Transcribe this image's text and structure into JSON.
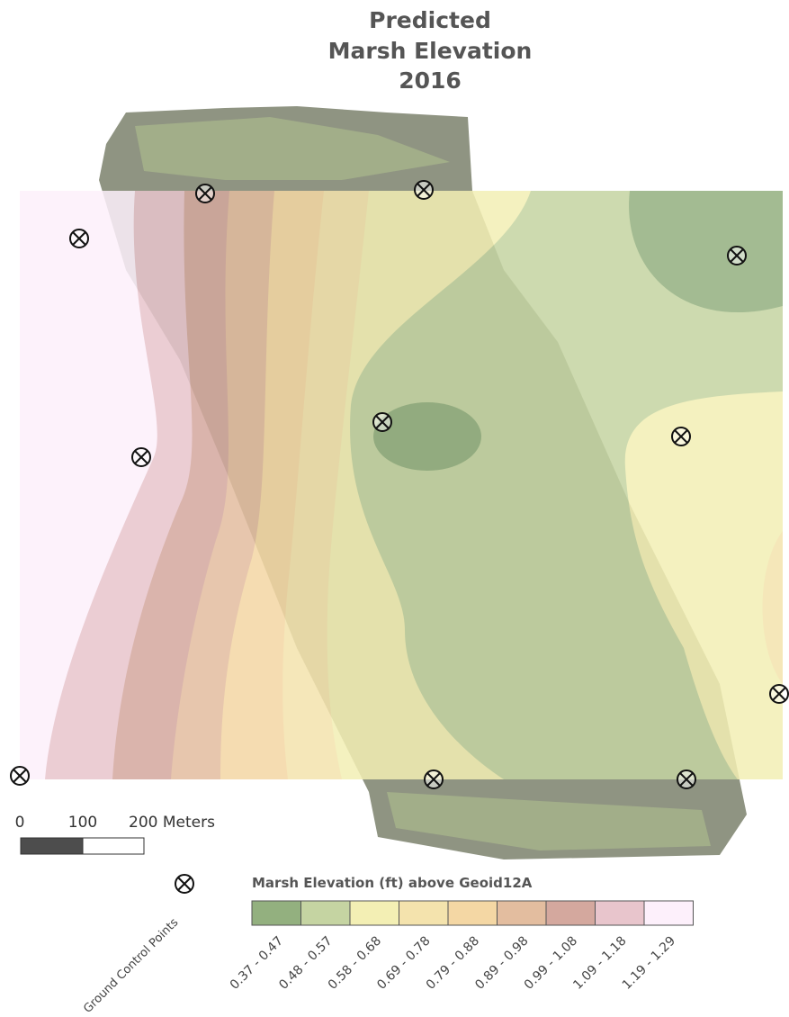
{
  "title": [
    "Predicted",
    "Marsh Elevation",
    "2016"
  ],
  "scale_bar": {
    "labels": [
      "0",
      "100",
      "200 Meters"
    ]
  },
  "points_label": "Ground Control Points",
  "legend": {
    "title": "Marsh Elevation (ft) above Geoid12A",
    "classes": [
      {
        "label": "0.37 - 0.47",
        "color": "#93b07f"
      },
      {
        "label": "0.48 - 0.57",
        "color": "#c5d4a2"
      },
      {
        "label": "0.58 - 0.68",
        "color": "#f3efb4"
      },
      {
        "label": "0.69 - 0.78",
        "color": "#f4e3ad"
      },
      {
        "label": "0.79 - 0.88",
        "color": "#f4d7a4"
      },
      {
        "label": "0.89 - 0.98",
        "color": "#e3bd9f"
      },
      {
        "label": "0.99 - 1.08",
        "color": "#d4a89e"
      },
      {
        "label": "1.09 - 1.18",
        "color": "#e8c5cc"
      },
      {
        "label": "1.19 - 1.29",
        "color": "#fdf0fb"
      }
    ]
  }
}
